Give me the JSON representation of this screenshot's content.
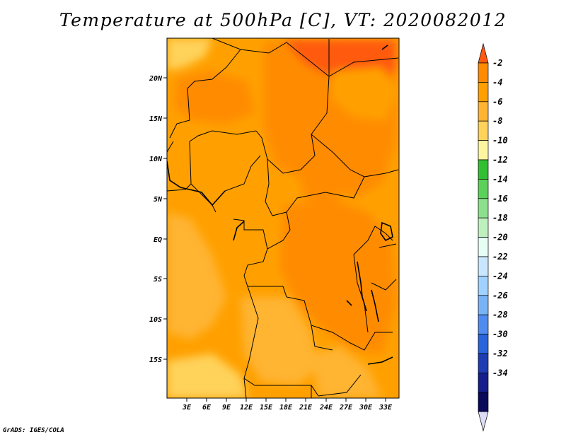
{
  "title": "Temperature at 500hPa [C], VT: 2020082012",
  "credit": "GrADS: IGES/COLA",
  "map": {
    "lon_labels": [
      "3E",
      "6E",
      "9E",
      "12E",
      "15E",
      "18E",
      "21E",
      "24E",
      "27E",
      "30E",
      "33E"
    ],
    "lat_labels": [
      "20N",
      "15N",
      "10N",
      "5N",
      "EQ",
      "5S",
      "10S",
      "15S"
    ]
  },
  "colorbar": {
    "labels": [
      "-2",
      "-4",
      "-6",
      "-8",
      "-10",
      "-12",
      "-14",
      "-16",
      "-18",
      "-20",
      "-22",
      "-24",
      "-26",
      "-28",
      "-30",
      "-32",
      "-34"
    ],
    "colors": [
      "#ff5a10",
      "#ff8c00",
      "#ffa000",
      "#ffb432",
      "#ffd25a",
      "#fff5a0",
      "#32c032",
      "#5ad25a",
      "#8ce08c",
      "#bef0be",
      "#e6fff5",
      "#c8e6ff",
      "#a0d2ff",
      "#78b4f5",
      "#508cf0",
      "#2864dc",
      "#1e3cb4",
      "#141e8c",
      "#0a0a5a",
      "#dcdcf5"
    ]
  }
}
